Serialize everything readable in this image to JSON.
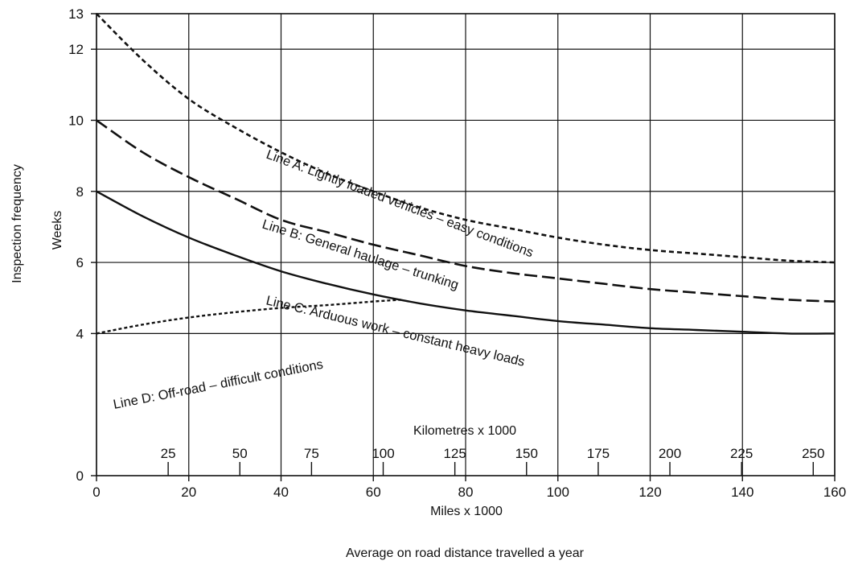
{
  "chart_data": {
    "type": "line",
    "xlabel": "Miles x 1000",
    "secondary_xlabel": "Kilometres x 1000",
    "caption": "Average on road distance travelled a year",
    "ylabel_outer": "Inspection frequency",
    "ylabel_inner": "Weeks",
    "xlim": [
      0,
      160
    ],
    "ylim": [
      0,
      13
    ],
    "x_ticks": [
      "0",
      "20",
      "40",
      "60",
      "80",
      "100",
      "120",
      "140",
      "160"
    ],
    "y_ticks": [
      "0",
      "4",
      "6",
      "8",
      "10",
      "12",
      "13"
    ],
    "km_ticks": [
      "25",
      "50",
      "75",
      "100",
      "125",
      "150",
      "175",
      "200",
      "225",
      "250"
    ],
    "grid": true,
    "series": [
      {
        "name": "Line A: Lightly loaded vehicles – easy conditions",
        "style": "short-dash",
        "x": [
          0,
          10,
          20,
          30,
          40,
          50,
          60,
          70,
          80,
          90,
          100,
          110,
          120,
          130,
          140,
          150,
          160
        ],
        "y": [
          13.0,
          11.7,
          10.6,
          9.8,
          9.1,
          8.5,
          8.0,
          7.55,
          7.2,
          6.95,
          6.7,
          6.5,
          6.35,
          6.25,
          6.15,
          6.05,
          6.0
        ]
      },
      {
        "name": "Line B: General haulage – trunking",
        "style": "long-dash",
        "x": [
          0,
          10,
          20,
          30,
          40,
          50,
          60,
          70,
          80,
          90,
          100,
          110,
          120,
          130,
          140,
          150,
          160
        ],
        "y": [
          10.0,
          9.1,
          8.4,
          7.8,
          7.2,
          6.85,
          6.5,
          6.2,
          5.9,
          5.7,
          5.55,
          5.4,
          5.25,
          5.15,
          5.05,
          4.95,
          4.9
        ]
      },
      {
        "name": "Line C: Arduous work – constant heavy loads",
        "style": "solid",
        "x": [
          0,
          10,
          20,
          30,
          40,
          50,
          60,
          70,
          80,
          90,
          100,
          110,
          120,
          130,
          140,
          150,
          160
        ],
        "y": [
          8.0,
          7.3,
          6.7,
          6.2,
          5.75,
          5.4,
          5.1,
          4.85,
          4.65,
          4.5,
          4.35,
          4.25,
          4.15,
          4.1,
          4.05,
          4.0,
          4.0
        ]
      },
      {
        "name": "Line D: Off-road – difficult conditions",
        "style": "dotted",
        "x": [
          0,
          10,
          20,
          30,
          40,
          50,
          60,
          66
        ],
        "y": [
          4.0,
          4.25,
          4.45,
          4.6,
          4.72,
          4.8,
          4.9,
          4.95
        ]
      }
    ],
    "labels": {
      "a": "Line A: Lightly loaded vehicles – easy conditions",
      "b": "Line B: General haulage – trunking",
      "c": "Line C: Arduous work – constant heavy loads",
      "d": "Line D: Off-road – difficult conditions"
    }
  }
}
